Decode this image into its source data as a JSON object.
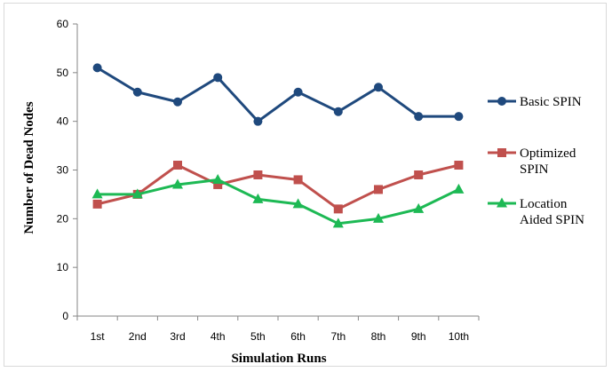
{
  "chart_data": {
    "type": "line",
    "title": "",
    "xlabel": "Simulation Runs",
    "ylabel": "Number  of  Dead Nodes",
    "categories": [
      "1st",
      "2nd",
      "3rd",
      "4th",
      "5th",
      "6th",
      "7th",
      "8th",
      "9th",
      "10th"
    ],
    "ylim": [
      0,
      60
    ],
    "yticks": [
      0,
      10,
      20,
      30,
      40,
      50,
      60
    ],
    "grid": false,
    "legend_position": "right",
    "series": [
      {
        "name": "Basic SPIN",
        "legend_lines": [
          "Basic SPIN"
        ],
        "color": "#1F497D",
        "marker": "circle",
        "values": [
          51,
          46,
          44,
          49,
          40,
          46,
          42,
          47,
          41,
          41
        ]
      },
      {
        "name": "Optimized SPIN",
        "legend_lines": [
          "Optimized",
          "SPIN"
        ],
        "color": "#C0504D",
        "marker": "square",
        "values": [
          23,
          25,
          31,
          27,
          29,
          28,
          22,
          26,
          29,
          31
        ]
      },
      {
        "name": "Location Aided SPIN",
        "legend_lines": [
          "Location",
          "Aided SPIN"
        ],
        "color": "#1DB954",
        "marker": "triangle",
        "values": [
          25,
          25,
          27,
          28,
          24,
          23,
          19,
          20,
          22,
          26
        ]
      }
    ]
  }
}
